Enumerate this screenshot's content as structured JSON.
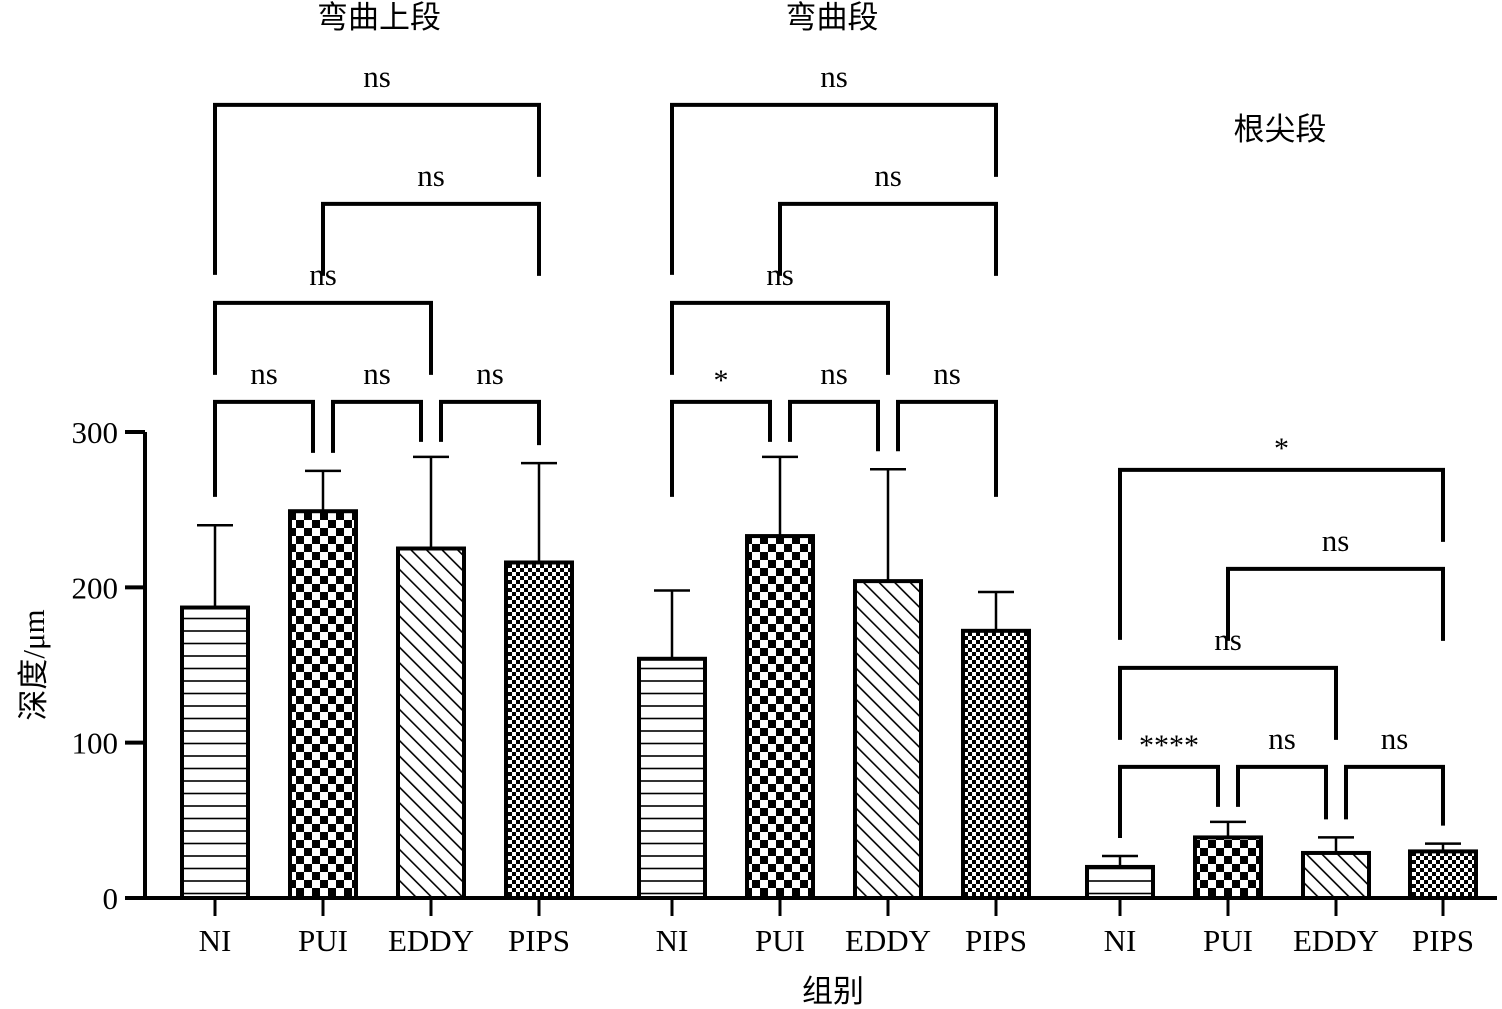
{
  "chart_data": {
    "type": "bar",
    "xlabel": "组别",
    "ylabel": "深度/μm",
    "ylim": [
      0,
      300
    ],
    "yticks": [
      0,
      100,
      200,
      300
    ],
    "grid": false,
    "legend": "none",
    "categories": [
      "NI",
      "PUI",
      "EDDY",
      "PIPS"
    ],
    "groups": [
      {
        "title": "弯曲上段",
        "values": [
          187,
          249,
          225,
          216
        ],
        "errors": [
          53,
          26,
          59,
          64
        ],
        "comparisons": [
          {
            "a": 0,
            "b": 3,
            "label": "ns"
          },
          {
            "a": 1,
            "b": 3,
            "label": "ns"
          },
          {
            "a": 0,
            "b": 2,
            "label": "ns"
          },
          {
            "a": 0,
            "b": 1,
            "label": "ns"
          },
          {
            "a": 1,
            "b": 2,
            "label": "ns"
          },
          {
            "a": 2,
            "b": 3,
            "label": "ns"
          }
        ]
      },
      {
        "title": "弯曲段",
        "values": [
          154,
          233,
          204,
          172
        ],
        "errors": [
          44,
          51,
          72,
          25
        ],
        "comparisons": [
          {
            "a": 0,
            "b": 3,
            "label": "ns"
          },
          {
            "a": 1,
            "b": 3,
            "label": "ns"
          },
          {
            "a": 0,
            "b": 2,
            "label": "ns"
          },
          {
            "a": 0,
            "b": 1,
            "label": "*"
          },
          {
            "a": 1,
            "b": 2,
            "label": "ns"
          },
          {
            "a": 2,
            "b": 3,
            "label": "ns"
          }
        ]
      },
      {
        "title": "根尖段",
        "values": [
          20,
          39,
          29,
          30
        ],
        "errors": [
          7,
          10,
          10,
          5
        ],
        "comparisons": [
          {
            "a": 0,
            "b": 3,
            "label": "*"
          },
          {
            "a": 1,
            "b": 3,
            "label": "ns"
          },
          {
            "a": 0,
            "b": 2,
            "label": "ns"
          },
          {
            "a": 0,
            "b": 1,
            "label": "****"
          },
          {
            "a": 1,
            "b": 2,
            "label": "ns"
          },
          {
            "a": 2,
            "b": 3,
            "label": "ns"
          }
        ]
      }
    ],
    "patterns": [
      "horizontal-lines-pattern",
      "checkerboard-pattern",
      "diagonal-lines-pattern",
      "fine-checker-pattern"
    ]
  }
}
